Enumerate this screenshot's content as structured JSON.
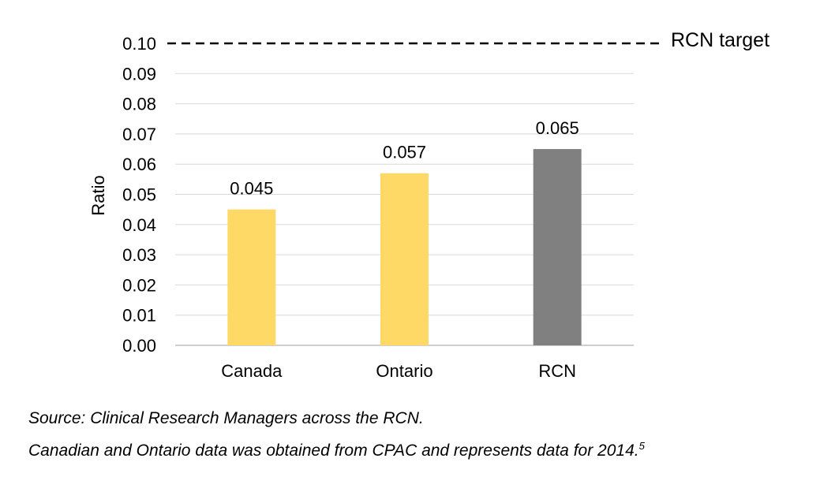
{
  "chart_data": {
    "type": "bar",
    "categories": [
      "Canada",
      "Ontario",
      "RCN"
    ],
    "values": [
      0.045,
      0.057,
      0.065
    ],
    "data_labels": [
      "0.045",
      "0.057",
      "0.065"
    ],
    "ylabel": "Ratio",
    "ylim": [
      0,
      0.1
    ],
    "y_ticks": [
      "0.00",
      "0.01",
      "0.02",
      "0.03",
      "0.04",
      "0.05",
      "0.06",
      "0.07",
      "0.08",
      "0.09",
      "0.10"
    ],
    "grid": true,
    "target": {
      "label": "RCN target",
      "value": 0.1,
      "style": "dashed"
    },
    "bar_colors": [
      "#FFD966",
      "#FFD966",
      "#808080"
    ]
  },
  "notes": {
    "source": "Source: Clinical Research Managers across the RCN.",
    "data_note": "Canadian and Ontario data was obtained from CPAC and represents data for 2014.",
    "footnote_ref": "5"
  }
}
